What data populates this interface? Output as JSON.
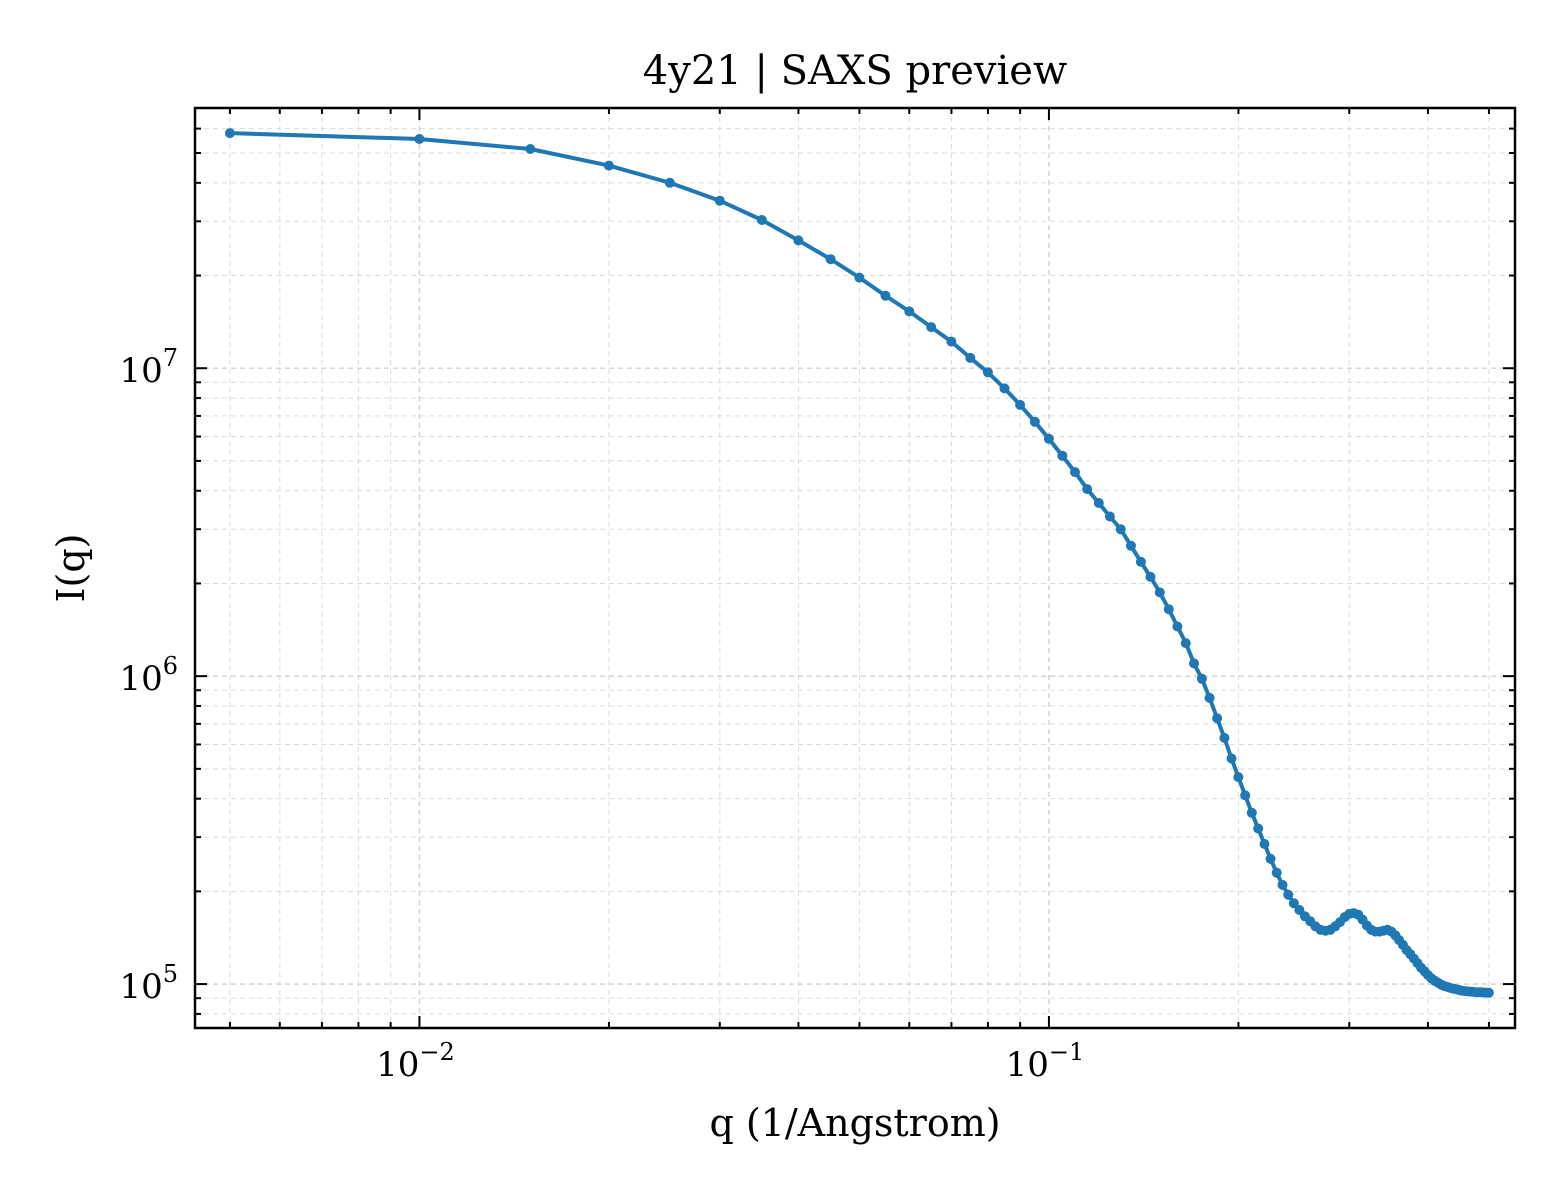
{
  "chart_data": {
    "type": "line",
    "title": "4y21 | SAXS preview",
    "xlabel": "q (1/Angstrom)",
    "ylabel": "I(q)",
    "xscale": "log",
    "yscale": "log",
    "xlim": [
      0.0044,
      0.55
    ],
    "ylim": [
      72000,
      70000000
    ],
    "grid": true,
    "legend": "none",
    "x_ticks": [
      {
        "value": 0.01,
        "base": "10",
        "exp": "−2"
      },
      {
        "value": 0.1,
        "base": "10",
        "exp": "−1"
      }
    ],
    "y_ticks": [
      {
        "value": 100000,
        "base": "10",
        "exp": "5"
      },
      {
        "value": 1000000,
        "base": "10",
        "exp": "6"
      },
      {
        "value": 10000000,
        "base": "10",
        "exp": "7"
      }
    ],
    "series": [
      {
        "color": "#1f77b4",
        "points": [
          [
            0.005,
            58000000
          ],
          [
            0.01,
            55500000
          ],
          [
            0.015,
            51500000
          ],
          [
            0.02,
            45500000
          ],
          [
            0.025,
            40000000
          ],
          [
            0.03,
            35000000
          ],
          [
            0.035,
            30300000
          ],
          [
            0.04,
            26000000
          ],
          [
            0.045,
            22600000
          ],
          [
            0.05,
            19700000
          ],
          [
            0.055,
            17200000
          ],
          [
            0.06,
            15300000
          ],
          [
            0.065,
            13600000
          ],
          [
            0.07,
            12200000
          ],
          [
            0.075,
            10800000
          ],
          [
            0.08,
            9700000
          ],
          [
            0.085,
            8600000
          ],
          [
            0.09,
            7600000
          ],
          [
            0.095,
            6700000
          ],
          [
            0.1,
            5900000
          ],
          [
            0.105,
            5200000
          ],
          [
            0.11,
            4600000
          ],
          [
            0.115,
            4050000
          ],
          [
            0.12,
            3650000
          ],
          [
            0.125,
            3300000
          ],
          [
            0.13,
            3000000
          ],
          [
            0.135,
            2650000
          ],
          [
            0.14,
            2350000
          ],
          [
            0.145,
            2100000
          ],
          [
            0.15,
            1870000
          ],
          [
            0.155,
            1650000
          ],
          [
            0.16,
            1450000
          ],
          [
            0.165,
            1280000
          ],
          [
            0.17,
            1100000
          ],
          [
            0.175,
            980000
          ],
          [
            0.18,
            850000
          ],
          [
            0.185,
            730000
          ],
          [
            0.19,
            630000
          ],
          [
            0.195,
            540000
          ],
          [
            0.2,
            470000
          ],
          [
            0.205,
            410000
          ],
          [
            0.21,
            360000
          ],
          [
            0.215,
            320000
          ],
          [
            0.22,
            285000
          ],
          [
            0.225,
            255000
          ],
          [
            0.23,
            230000
          ],
          [
            0.235,
            210000
          ],
          [
            0.24,
            195000
          ],
          [
            0.245,
            183000
          ],
          [
            0.25,
            174000
          ],
          [
            0.255,
            166000
          ],
          [
            0.26,
            160000
          ],
          [
            0.265,
            154000
          ],
          [
            0.27,
            150000
          ],
          [
            0.275,
            149000
          ],
          [
            0.28,
            150000
          ],
          [
            0.285,
            154000
          ],
          [
            0.29,
            159000
          ],
          [
            0.295,
            165000
          ],
          [
            0.3,
            169000
          ],
          [
            0.305,
            170000
          ],
          [
            0.31,
            168000
          ],
          [
            0.315,
            162000
          ],
          [
            0.32,
            155000
          ],
          [
            0.325,
            150000
          ],
          [
            0.33,
            148000
          ],
          [
            0.335,
            148000
          ],
          [
            0.34,
            149000
          ],
          [
            0.345,
            150000
          ],
          [
            0.35,
            148000
          ],
          [
            0.355,
            144000
          ],
          [
            0.36,
            139000
          ],
          [
            0.365,
            134000
          ],
          [
            0.37,
            129000
          ],
          [
            0.375,
            125000
          ],
          [
            0.38,
            121000
          ],
          [
            0.385,
            117000
          ],
          [
            0.39,
            113000
          ],
          [
            0.395,
            110000
          ],
          [
            0.4,
            107000
          ],
          [
            0.405,
            104500
          ],
          [
            0.41,
            102500
          ],
          [
            0.415,
            101000
          ],
          [
            0.42,
            99500
          ],
          [
            0.425,
            98500
          ],
          [
            0.43,
            97800
          ],
          [
            0.435,
            97000
          ],
          [
            0.44,
            96500
          ],
          [
            0.445,
            96000
          ],
          [
            0.45,
            95500
          ],
          [
            0.455,
            95000
          ],
          [
            0.46,
            94800
          ],
          [
            0.465,
            94600
          ],
          [
            0.47,
            94400
          ],
          [
            0.475,
            94200
          ],
          [
            0.48,
            94100
          ],
          [
            0.485,
            94000
          ],
          [
            0.49,
            93900
          ],
          [
            0.495,
            93800
          ],
          [
            0.5,
            93700
          ]
        ]
      }
    ]
  }
}
